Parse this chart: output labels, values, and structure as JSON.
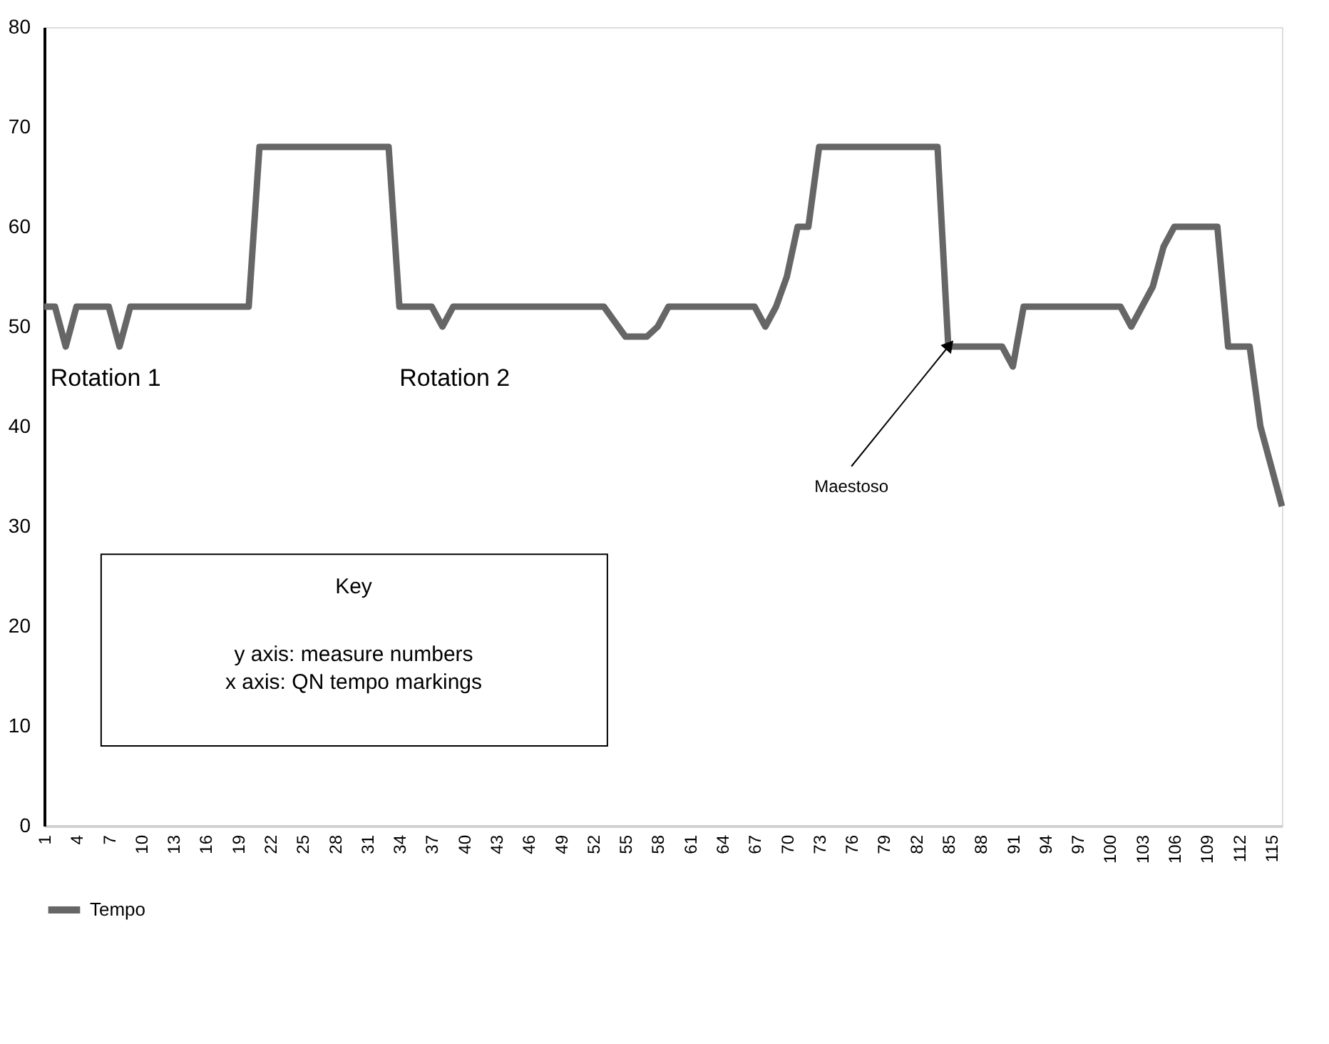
{
  "chart_data": {
    "type": "line",
    "xlim": [
      1,
      116
    ],
    "xticks": [
      1,
      4,
      7,
      10,
      13,
      16,
      19,
      22,
      25,
      28,
      31,
      34,
      37,
      40,
      43,
      46,
      49,
      52,
      55,
      58,
      61,
      64,
      67,
      70,
      73,
      76,
      79,
      82,
      85,
      88,
      91,
      94,
      97,
      100,
      103,
      106,
      109,
      112,
      115
    ],
    "ylim": [
      0,
      80
    ],
    "yticks": [
      0,
      10,
      20,
      30,
      40,
      50,
      60,
      70,
      80
    ],
    "grid": false,
    "legend": "bottom",
    "line_style": "solid",
    "marker": "none",
    "series": [
      {
        "name": "Tempo",
        "color": "#666666",
        "x": [
          1,
          2,
          3,
          4,
          7,
          8,
          9,
          20,
          21,
          33,
          34,
          37,
          38,
          39,
          53,
          55,
          57,
          58,
          59,
          67,
          68,
          69,
          70,
          71,
          72,
          73,
          84,
          85,
          90,
          91,
          92,
          101,
          102,
          103,
          104,
          105,
          106,
          110,
          111,
          112,
          113,
          114,
          116
        ],
        "values": [
          52,
          52,
          48,
          52,
          52,
          48,
          52,
          52,
          68,
          68,
          52,
          52,
          50,
          52,
          52,
          49,
          49,
          50,
          52,
          52,
          50,
          52,
          55,
          60,
          60,
          68,
          68,
          48,
          48,
          46,
          52,
          52,
          50,
          52,
          54,
          58,
          60,
          60,
          48,
          48,
          48,
          40,
          32
        ]
      }
    ],
    "annotations": [
      "Rotation 1",
      "Rotation 2",
      {
        "text": "Maestoso",
        "x": 85,
        "y": 48
      },
      "Key",
      "y axis: measure numbers",
      "x axis: QN tempo markings"
    ]
  }
}
